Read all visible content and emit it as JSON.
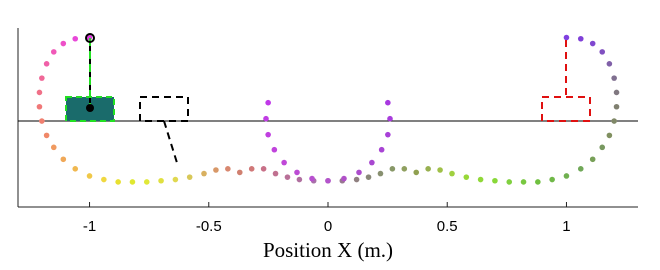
{
  "chart_data": {
    "type": "scatter",
    "xlabel": "Position X (m.)",
    "xlim": [
      -1.3,
      1.3
    ],
    "ylim": [
      -0.36,
      0.39
    ],
    "xticks": [
      -1,
      -0.5,
      0,
      0.5,
      1
    ],
    "series": [
      {
        "x": [
          -1.0,
          -1.06,
          -1.11,
          -1.15,
          -1.18,
          -1.2,
          -1.21,
          -1.21,
          -1.2,
          -1.18,
          -1.15,
          -1.11,
          -1.06,
          -1.0,
          -0.94,
          -0.88,
          -0.82,
          -0.76,
          -0.7,
          -0.64,
          -0.58,
          -0.52,
          -0.47,
          -0.42,
          -0.37,
          -0.32,
          -0.27,
          -0.22,
          -0.17,
          -0.12,
          -0.06,
          0,
          0.06,
          0.12,
          0.17,
          0.22,
          0.27,
          0.32,
          0.37,
          0.42,
          0.47,
          0.52,
          0.58,
          0.64,
          0.7,
          0.76,
          0.82,
          0.88,
          0.94,
          1.0,
          1.06,
          1.11,
          1.15,
          1.18,
          1.2,
          1.21,
          1.21,
          1.2,
          1.18,
          1.15,
          1.11,
          1.06,
          1.0
        ],
        "values": [
          0.35,
          0.345,
          0.325,
          0.29,
          0.24,
          0.18,
          0.12,
          0.06,
          0.0,
          -0.06,
          -0.11,
          -0.16,
          -0.2,
          -0.23,
          -0.245,
          -0.255,
          -0.255,
          -0.255,
          -0.25,
          -0.245,
          -0.235,
          -0.22,
          -0.205,
          -0.2,
          -0.215,
          -0.2,
          -0.2,
          -0.22,
          -0.235,
          -0.245,
          -0.25,
          -0.25,
          -0.25,
          -0.245,
          -0.235,
          -0.22,
          -0.2,
          -0.2,
          -0.215,
          -0.2,
          -0.205,
          -0.22,
          -0.235,
          -0.245,
          -0.25,
          -0.255,
          -0.255,
          -0.255,
          -0.245,
          -0.23,
          -0.2,
          -0.16,
          -0.11,
          -0.06,
          0.0,
          0.06,
          0.12,
          0.18,
          0.24,
          0.29,
          0.325,
          0.345,
          0.35
        ],
        "colors": [
          "#e040e0",
          "#e848d8",
          "#ee50c8",
          "#f058b8",
          "#f060a8",
          "#f06898",
          "#f07088",
          "#f07878",
          "#f08070",
          "#f08868",
          "#f09a60",
          "#f0a858",
          "#f0b850",
          "#f0c848",
          "#f0d840",
          "#e8e030",
          "#e0e830",
          "#e0e838",
          "#e0e040",
          "#e0d850",
          "#d8c858",
          "#d8b060",
          "#d89868",
          "#d88870",
          "#d08070",
          "#d07878",
          "#c87088",
          "#c07090",
          "#b87098",
          "#b070a0",
          "#a870a8",
          "#a070a0",
          "#987890",
          "#908080",
          "#888878",
          "#889070",
          "#889868",
          "#90a060",
          "#90a050",
          "#98b050",
          "#a0c048",
          "#a0d040",
          "#98d838",
          "#90d838",
          "#88d838",
          "#80d040",
          "#78c840",
          "#70c040",
          "#70b848",
          "#70b050",
          "#70a858",
          "#78a058",
          "#789860",
          "#809060",
          "#808868",
          "#808070",
          "#807880",
          "#807090",
          "#8060a8",
          "#8050c0",
          "#8048d0",
          "#8040d8",
          "#8040e0"
        ]
      },
      {
        "x": [
          -0.251,
          -0.26,
          -0.251,
          -0.225,
          -0.184,
          -0.13,
          -0.067,
          0,
          0.067,
          0.13,
          0.184,
          0.225,
          0.251,
          0.26,
          0.251
        ],
        "values": [
          0.077,
          0.01,
          -0.057,
          -0.12,
          -0.174,
          -0.215,
          -0.241,
          -0.25,
          -0.241,
          -0.215,
          -0.174,
          -0.12,
          -0.057,
          0.01,
          0.077
        ],
        "colors": [
          "#c038e8",
          "#c03ce4",
          "#c040e0",
          "#c044dc",
          "#c048d8",
          "#bc4cd4",
          "#b850d0",
          "#b454cc",
          "#b050c8",
          "#ac4ccc",
          "#a848d0",
          "#a844d4",
          "#a840d8",
          "#a83cdc",
          "#a838e0"
        ]
      }
    ]
  }
}
